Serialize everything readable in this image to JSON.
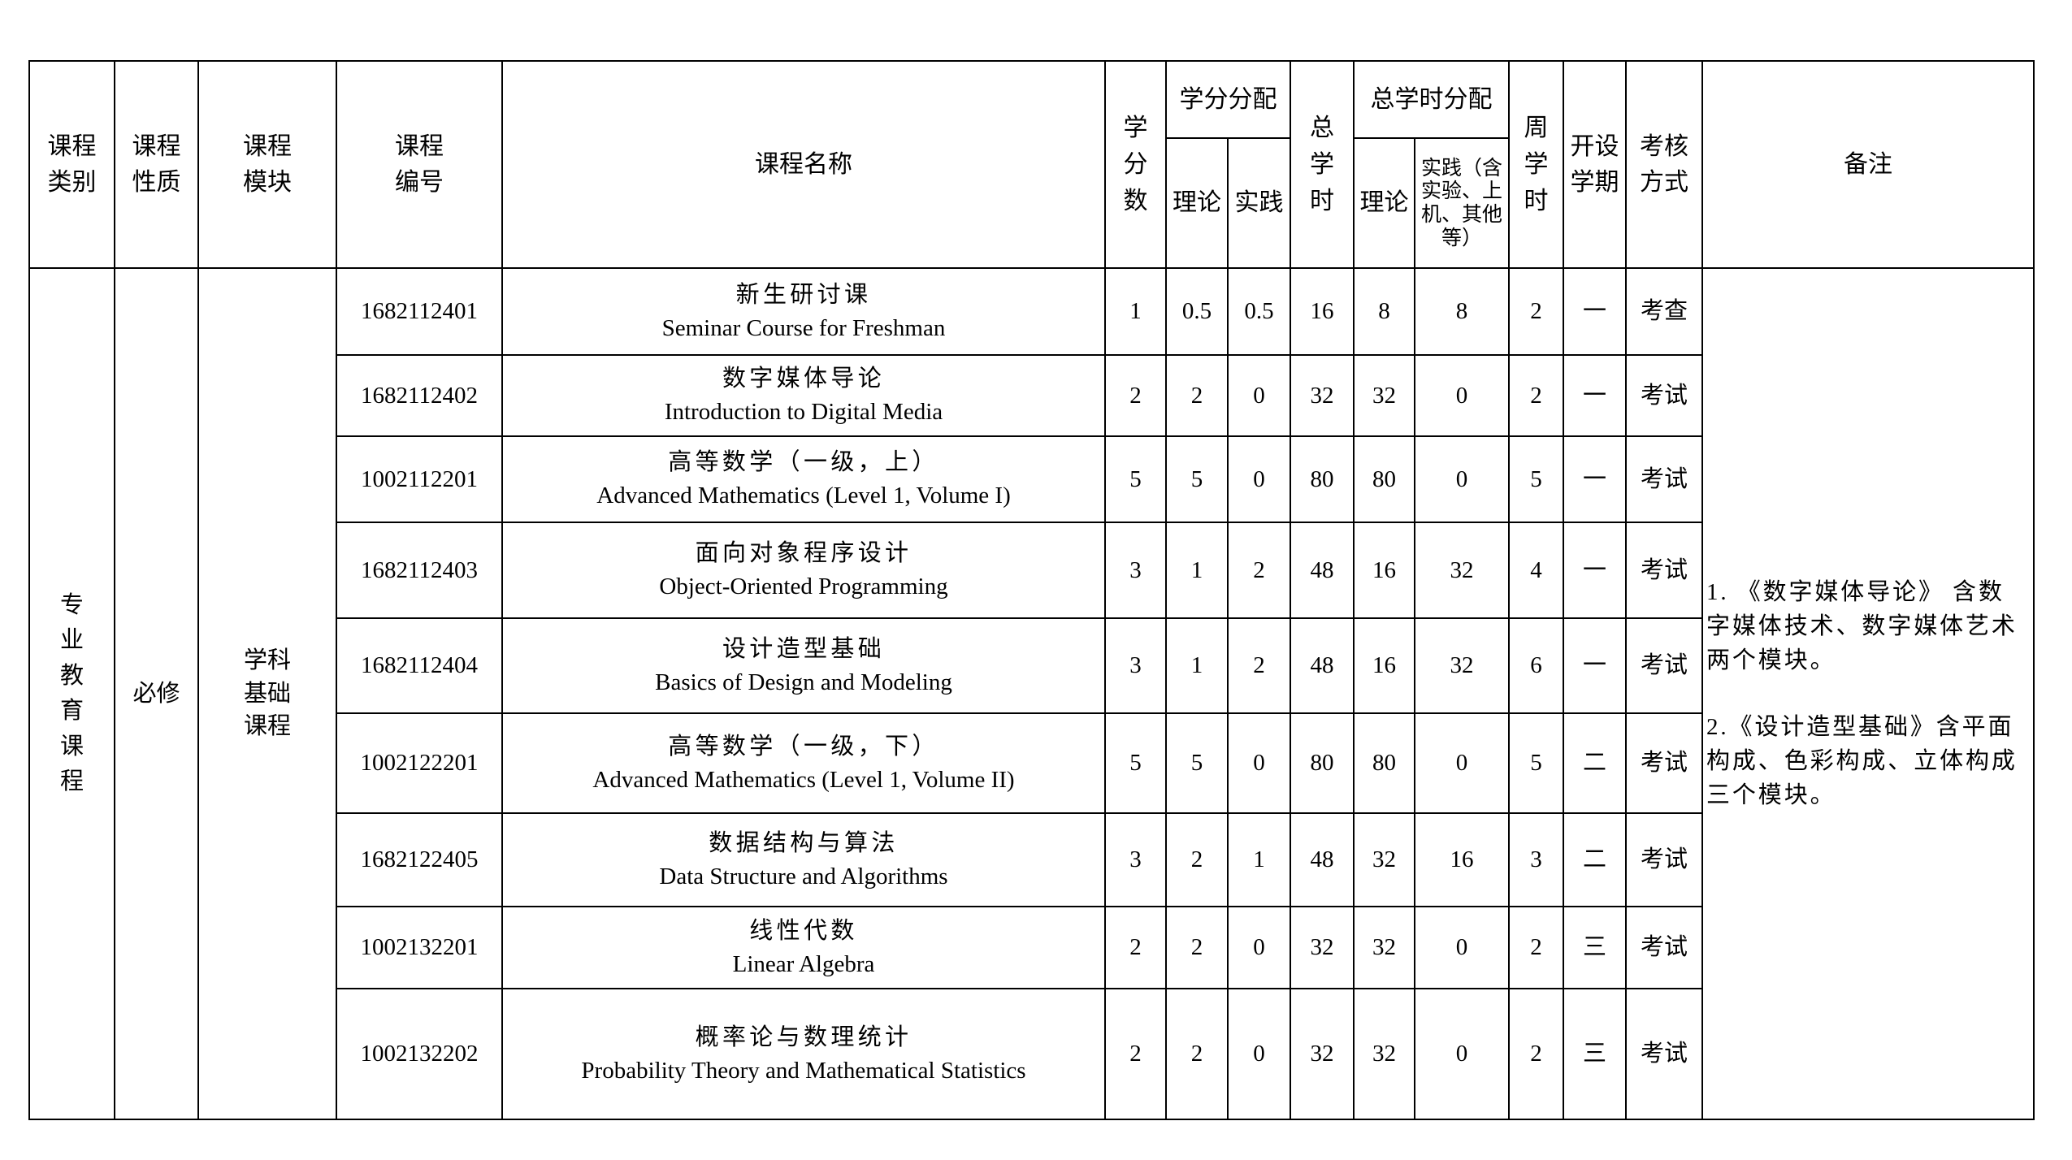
{
  "header": {
    "category": "课程类别",
    "nature": "课程性质",
    "module": "课程模块",
    "code": "课程编号",
    "name": "课程名称",
    "credits": "学分数",
    "credit_dist": "学分分配",
    "theory": "理论",
    "practice": "实践",
    "total_hours": "总学时",
    "hours_dist": "总学时分配",
    "hours_theory": "理论",
    "hours_practice": "实践（含实验、上机、其他等）",
    "weekly_hours": "周学时",
    "semester": "开设学期",
    "assessment": "考核方式",
    "remarks": "备注"
  },
  "group": {
    "category": "专业教育课程",
    "nature": "必修",
    "module": "学科基础课程",
    "remarks": [
      "1. 《数字媒体导论》 含数字媒体技术、数字媒体艺术两个模块。",
      "2.《设计造型基础》含平面构成、色彩构成、立体构成三个模块。"
    ]
  },
  "rows": [
    {
      "code": "1682112401",
      "name_cn": "新生研讨课",
      "name_en": "Seminar Course for Freshman",
      "credits": "1",
      "theory": "0.5",
      "practice": "0.5",
      "total": "16",
      "h_theory": "8",
      "h_practice": "8",
      "weekly": "2",
      "semester": "一",
      "assessment": "考查"
    },
    {
      "code": "1682112402",
      "name_cn": "数字媒体导论",
      "name_en": "Introduction to Digital Media",
      "credits": "2",
      "theory": "2",
      "practice": "0",
      "total": "32",
      "h_theory": "32",
      "h_practice": "0",
      "weekly": "2",
      "semester": "一",
      "assessment": "考试"
    },
    {
      "code": "1002112201",
      "name_cn": "高等数学（一级，上）",
      "name_en": "Advanced Mathematics (Level 1, Volume I)",
      "credits": "5",
      "theory": "5",
      "practice": "0",
      "total": "80",
      "h_theory": "80",
      "h_practice": "0",
      "weekly": "5",
      "semester": "一",
      "assessment": "考试"
    },
    {
      "code": "1682112403",
      "name_cn": "面向对象程序设计",
      "name_en": "Object-Oriented Programming",
      "credits": "3",
      "theory": "1",
      "practice": "2",
      "total": "48",
      "h_theory": "16",
      "h_practice": "32",
      "weekly": "4",
      "semester": "一",
      "assessment": "考试"
    },
    {
      "code": "1682112404",
      "name_cn": "设计造型基础",
      "name_en": "Basics of Design and Modeling",
      "credits": "3",
      "theory": "1",
      "practice": "2",
      "total": "48",
      "h_theory": "16",
      "h_practice": "32",
      "weekly": "6",
      "semester": "一",
      "assessment": "考试"
    },
    {
      "code": "1002122201",
      "name_cn": "高等数学（一级，下）",
      "name_en": "Advanced Mathematics (Level 1, Volume II)",
      "credits": "5",
      "theory": "5",
      "practice": "0",
      "total": "80",
      "h_theory": "80",
      "h_practice": "0",
      "weekly": "5",
      "semester": "二",
      "assessment": "考试"
    },
    {
      "code": "1682122405",
      "name_cn": "数据结构与算法",
      "name_en": "Data Structure and Algorithms",
      "credits": "3",
      "theory": "2",
      "practice": "1",
      "total": "48",
      "h_theory": "32",
      "h_practice": "16",
      "weekly": "3",
      "semester": "二",
      "assessment": "考试"
    },
    {
      "code": "1002132201",
      "name_cn": "线性代数",
      "name_en": "Linear Algebra",
      "credits": "2",
      "theory": "2",
      "practice": "0",
      "total": "32",
      "h_theory": "32",
      "h_practice": "0",
      "weekly": "2",
      "semester": "三",
      "assessment": "考试"
    },
    {
      "code": "1002132202",
      "name_cn": "概率论与数理统计",
      "name_en": "Probability Theory and Mathematical Statistics",
      "credits": "2",
      "theory": "2",
      "practice": "0",
      "total": "32",
      "h_theory": "32",
      "h_practice": "0",
      "weekly": "2",
      "semester": "三",
      "assessment": "考试"
    }
  ]
}
